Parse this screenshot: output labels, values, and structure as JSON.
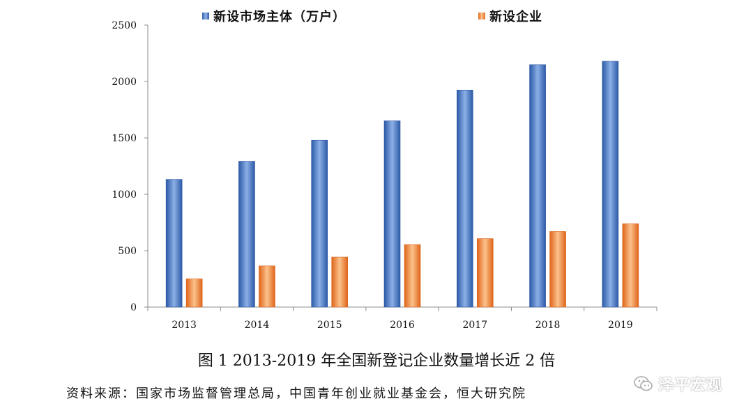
{
  "chart_data": {
    "type": "bar",
    "categories": [
      "2013",
      "2014",
      "2015",
      "2016",
      "2017",
      "2018",
      "2019"
    ],
    "series": [
      {
        "name": "新设市场主体（万户）",
        "values": [
          1132,
          1293,
          1480,
          1651,
          1924,
          2149,
          2179
        ],
        "color": "#4a7cc8"
      },
      {
        "name": "新设企业",
        "values": [
          250,
          365,
          444,
          553,
          607,
          670,
          739
        ],
        "color": "#f28a3c"
      }
    ],
    "ylim": [
      0,
      2500
    ],
    "yticks": [
      0,
      500,
      1000,
      1500,
      2000,
      2500
    ],
    "grid": false,
    "legend_position": "top"
  },
  "caption": "图 1    2013-2019 年全国新登记企业数量增长近 2 倍",
  "source": "资料来源：国家市场监督管理总局，中国青年创业就业基金会，恒大研究院",
  "watermark": {
    "text": "泽平宏观",
    "icon": "wechat-icon"
  }
}
